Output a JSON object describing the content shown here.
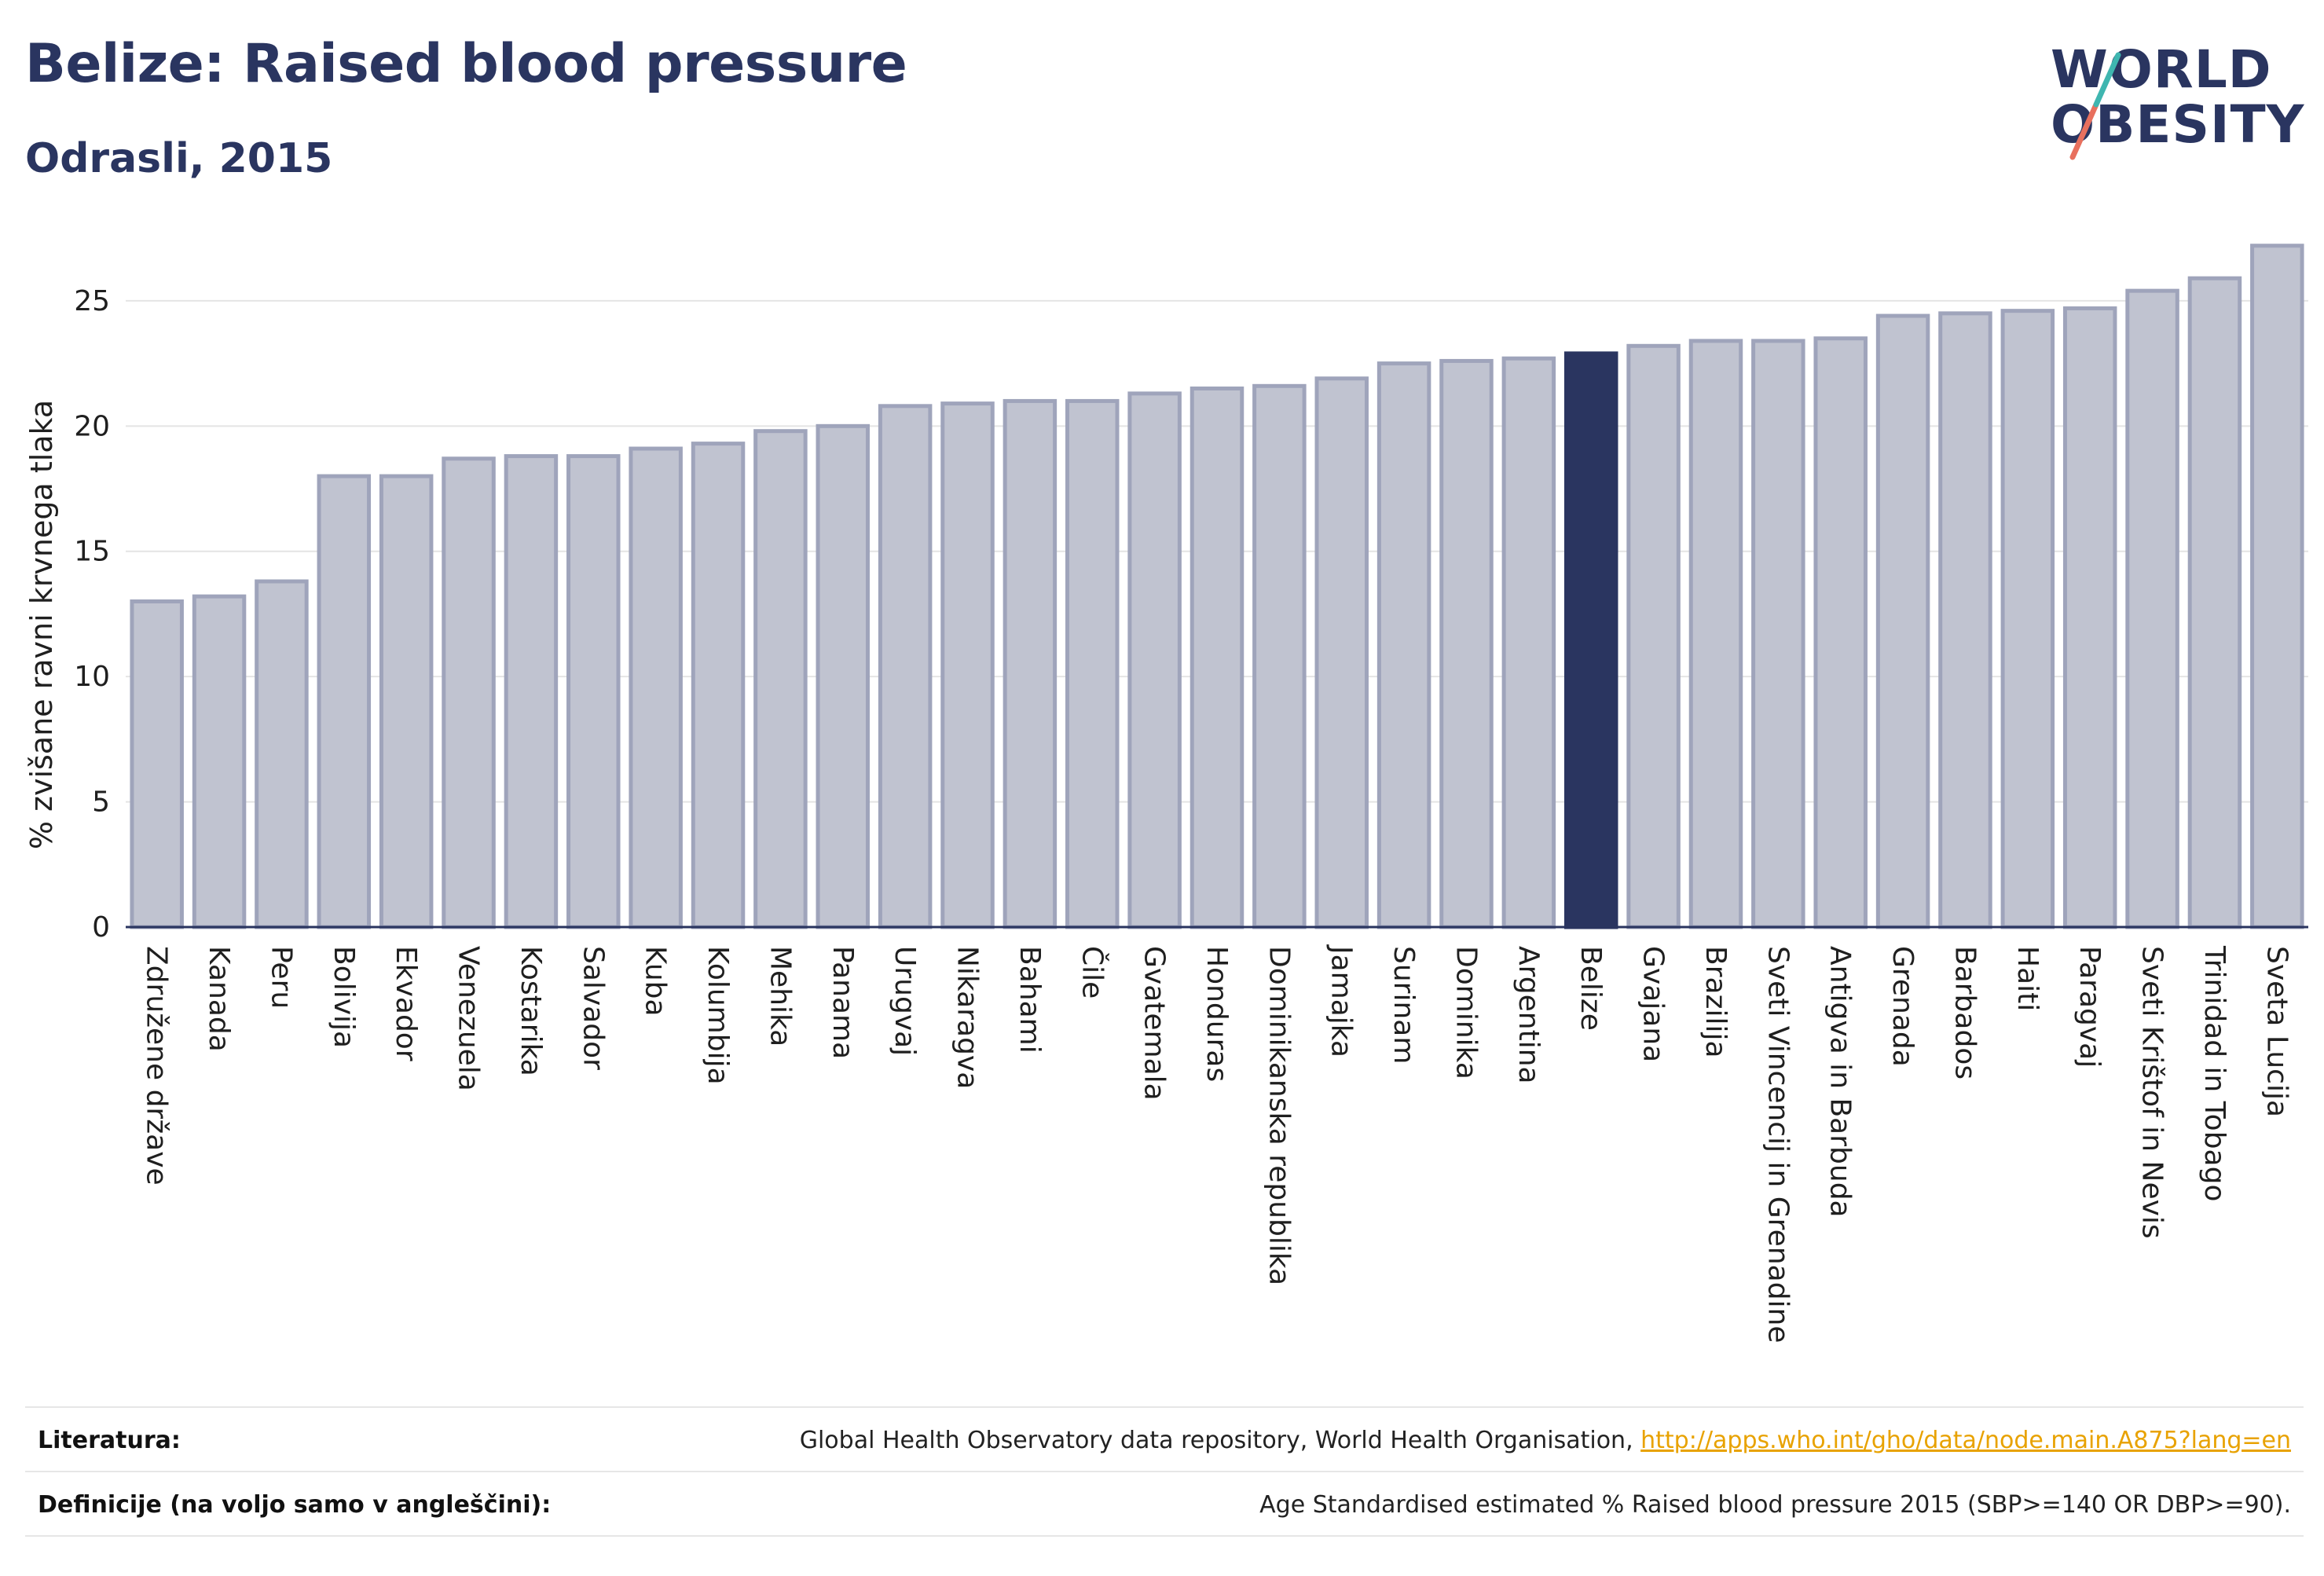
{
  "header": {
    "title": "Belize: Raised blood pressure",
    "subtitle": "Odrasli, 2015"
  },
  "logo": {
    "line1": "WORLD",
    "line2": "OBESITY"
  },
  "colors": {
    "bar": "#c0c3d0",
    "bar_border": "#9fa4bb",
    "highlight": "#2a3560",
    "gridline": "#e4e4e4",
    "title": "#2a3560"
  },
  "chart_data": {
    "type": "bar",
    "ylabel": "% zvišane ravni krvnega tlaka",
    "ylim": [
      0,
      27.6
    ],
    "yticks": [
      0,
      5,
      10,
      15,
      20,
      25
    ],
    "grid": true,
    "highlight": "Belize",
    "categories": [
      "Združene države",
      "Kanada",
      "Peru",
      "Bolivija",
      "Ekvador",
      "Venezuela",
      "Kostarika",
      "Salvador",
      "Kuba",
      "Kolumbija",
      "Mehika",
      "Panama",
      "Urugvaj",
      "Nikaragva",
      "Bahami",
      "Čile",
      "Gvatemala",
      "Honduras",
      "Dominikanska republika",
      "Jamajka",
      "Surinam",
      "Dominika",
      "Argentina",
      "Belize",
      "Gvajana",
      "Brazilija",
      "Sveti Vincencij in Grenadine",
      "Antigva in Barbuda",
      "Grenada",
      "Barbados",
      "Haiti",
      "Paragvaj",
      "Sveti Krištof in Nevis",
      "Trinidad in Tobago",
      "Sveta Lucija"
    ],
    "values": [
      13.0,
      13.2,
      13.8,
      18.0,
      18.0,
      18.7,
      18.8,
      18.8,
      19.1,
      19.3,
      19.8,
      20.0,
      20.8,
      20.9,
      21.0,
      21.0,
      21.3,
      21.5,
      21.6,
      21.9,
      22.5,
      22.6,
      22.7,
      22.9,
      23.2,
      23.4,
      23.4,
      23.5,
      24.4,
      24.5,
      24.6,
      24.7,
      25.4,
      25.9,
      27.2
    ]
  },
  "footer": {
    "references_label": "Literatura:",
    "references_text": "Global Health Observatory data repository, World Health Organisation, ",
    "references_link": "http://apps.who.int/gho/data/node.main.A875?lang=en",
    "definitions_label": "Definicije (na voljo samo v angleščini):",
    "definitions_text": "Age Standardised estimated % Raised blood pressure 2015 (SBP>=140 OR DBP>=90)."
  }
}
